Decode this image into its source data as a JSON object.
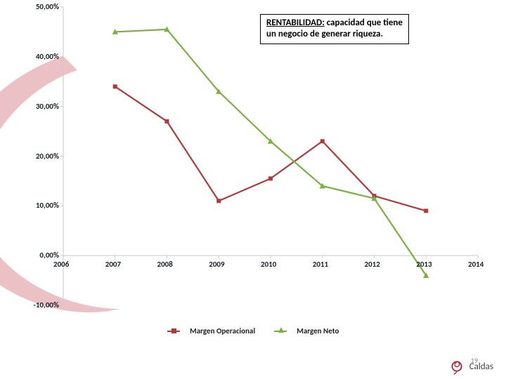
{
  "callout": {
    "line1": "RENTABILIDAD: capacidad que tiene",
    "line2": "un negocio de generar riqueza.",
    "underline_word_len": 96
  },
  "chart": {
    "type": "line",
    "background_color": "#ffffff",
    "axis_color": "#c9c9c9",
    "tick_font_size": 11,
    "tick_color": "#17202a",
    "x": {
      "labels": [
        "2006",
        "2007",
        "2008",
        "2009",
        "2010",
        "2011",
        "2012",
        "2013",
        "2014"
      ],
      "min": 2006,
      "max": 2014
    },
    "y": {
      "labels": [
        "-10,00%",
        "0,00%",
        "10,00%",
        "20,00%",
        "30,00%",
        "40,00%",
        "50,00%"
      ],
      "min": -10,
      "max": 50,
      "tick_step": 10
    },
    "series": [
      {
        "name": "Margen Operacional",
        "color": "#b03a3a",
        "marker": "square",
        "marker_size": 6,
        "line_width": 2.2,
        "points": [
          {
            "x": 2007,
            "y": 34
          },
          {
            "x": 2008,
            "y": 27
          },
          {
            "x": 2009,
            "y": 11
          },
          {
            "x": 2010,
            "y": 15.5
          },
          {
            "x": 2011,
            "y": 23
          },
          {
            "x": 2012,
            "y": 12
          },
          {
            "x": 2013,
            "y": 9
          }
        ]
      },
      {
        "name": "Margen Neto",
        "color": "#7bb043",
        "marker": "triangle",
        "marker_size": 7,
        "line_width": 2.2,
        "points": [
          {
            "x": 2007,
            "y": 45
          },
          {
            "x": 2008,
            "y": 45.5
          },
          {
            "x": 2009,
            "y": 33
          },
          {
            "x": 2010,
            "y": 23
          },
          {
            "x": 2011,
            "y": 14
          },
          {
            "x": 2012,
            "y": 11.5
          },
          {
            "x": 2013,
            "y": -4
          }
        ]
      }
    ],
    "legend": {
      "label1": "Margen Operacional",
      "label2": "Margen Neto"
    }
  },
  "background_swoosh_color": "#b91f2e",
  "footer": {
    "text": "Caldas",
    "rose_color": "#b91f2e"
  },
  "slide_number": "19"
}
